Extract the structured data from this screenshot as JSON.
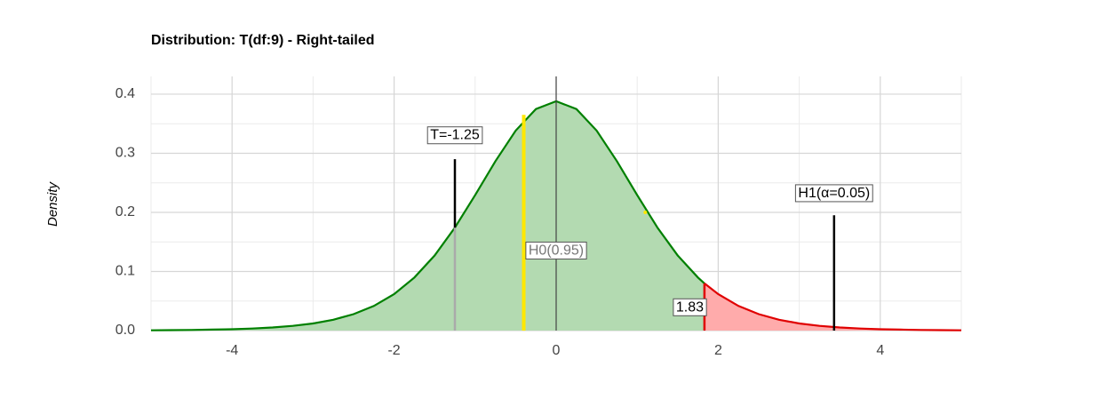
{
  "chart_data": {
    "type": "area",
    "title": "Distribution: T(df:9) - Right-tailed",
    "y_label": "Density",
    "xlim": [
      -5,
      5
    ],
    "ylim": [
      0,
      0.43
    ],
    "xticks": [
      -4,
      -2,
      0,
      2,
      4
    ],
    "yticks": [
      {
        "value": 0,
        "label": "0.0"
      },
      0.1,
      0.2,
      0.3,
      0.4
    ],
    "minor_xticks": [
      -5,
      -3,
      -1,
      1,
      3,
      5
    ],
    "minor_yticks": [
      0.05,
      0.15,
      0.25,
      0.35
    ],
    "grid": true,
    "series": [
      {
        "color": "#008000",
        "fill": "#b3dab1",
        "x": [
          -5,
          -4.75,
          -4.5,
          -4.25,
          -4,
          -3.75,
          -3.5,
          -3.25,
          -3,
          -2.75,
          -2.5,
          -2.25,
          -2,
          -1.75,
          -1.5,
          -1.25,
          -1,
          -0.75,
          -0.5,
          -0.25,
          0,
          0.25,
          0.5,
          0.75,
          1,
          1.25,
          1.5,
          1.75,
          1.83
        ],
        "values": [
          0.0005,
          0.0007,
          0.0011,
          0.0016,
          0.0023,
          0.0035,
          0.0053,
          0.008,
          0.0121,
          0.0184,
          0.0278,
          0.0417,
          0.0617,
          0.0897,
          0.1271,
          0.1743,
          0.2291,
          0.2865,
          0.3383,
          0.3748,
          0.388,
          0.3748,
          0.3383,
          0.2865,
          0.2291,
          0.1743,
          0.1271,
          0.0897,
          0.0798
        ]
      },
      {
        "color": "#e00000",
        "fill": "#ffabab",
        "x": [
          1.83,
          2,
          2.25,
          2.5,
          2.75,
          3,
          3.25,
          3.5,
          3.75,
          4,
          4.25,
          4.5,
          4.75,
          5
        ],
        "values": [
          0.0798,
          0.0617,
          0.0417,
          0.0278,
          0.0184,
          0.0121,
          0.008,
          0.0053,
          0.0035,
          0.0023,
          0.0016,
          0.0011,
          0.0007,
          0.0005
        ]
      }
    ],
    "lines": [
      {
        "x": 0,
        "y": [
          0,
          0.43
        ],
        "color": "#444"
      },
      {
        "x": -1.25,
        "y": [
          0,
          0.1743
        ],
        "color": "#aaaaaa"
      },
      {
        "x": -1.25,
        "y": [
          0.1743,
          0.29
        ],
        "color": "#000000"
      },
      {
        "x": -0.4,
        "y": [
          0,
          0.365
        ],
        "color": "#ffe800"
      },
      {
        "x": 3.43,
        "y": [
          0,
          0.195
        ],
        "color": "#000000"
      },
      {
        "x": 1.83,
        "y": [
          0,
          0.0798
        ],
        "color": "#e00000"
      }
    ],
    "points": [
      {
        "x": 1.1,
        "y": 0.2,
        "color": "#ffe800"
      }
    ],
    "labels": [
      {
        "text": "T=-1.25",
        "x": -1.25,
        "y": 0.33,
        "color": "#000000"
      },
      {
        "text": "H0(0.95)",
        "x": 0,
        "y": 0.135,
        "color": "#777777"
      },
      {
        "text": "H1(α=0.05)",
        "x": 3.43,
        "y": 0.232,
        "color": "#000000"
      },
      {
        "text": "1.83",
        "x": 1.65,
        "y": 0.039,
        "color": "#000000"
      }
    ]
  }
}
